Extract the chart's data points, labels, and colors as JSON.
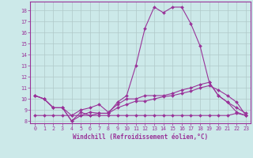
{
  "xlabel": "Windchill (Refroidissement éolien,°C)",
  "background_color": "#cce9e9",
  "grid_color": "#b0c8c8",
  "line_color": "#993399",
  "xlim": [
    -0.5,
    23.5
  ],
  "ylim": [
    7.8,
    18.8
  ],
  "yticks": [
    8,
    9,
    10,
    11,
    12,
    13,
    14,
    15,
    16,
    17,
    18
  ],
  "xticks": [
    0,
    1,
    2,
    3,
    4,
    5,
    6,
    7,
    8,
    9,
    10,
    11,
    12,
    13,
    14,
    15,
    16,
    17,
    18,
    19,
    20,
    21,
    22,
    23
  ],
  "series": [
    [
      10.3,
      10.0,
      9.2,
      9.2,
      8.0,
      8.8,
      8.5,
      8.7,
      8.7,
      9.7,
      10.3,
      13.0,
      16.4,
      18.3,
      17.8,
      18.3,
      18.3,
      16.8,
      14.8,
      11.5,
      10.3,
      9.7,
      8.8,
      8.5
    ],
    [
      10.3,
      10.0,
      9.2,
      9.2,
      8.5,
      9.0,
      9.2,
      9.5,
      8.8,
      9.5,
      10.0,
      10.0,
      10.3,
      10.3,
      10.3,
      10.5,
      10.8,
      11.0,
      11.3,
      11.5,
      10.3,
      9.7,
      9.2,
      8.7
    ],
    [
      10.3,
      10.0,
      9.2,
      9.2,
      8.0,
      8.5,
      8.8,
      8.7,
      8.7,
      9.2,
      9.5,
      9.8,
      9.8,
      10.0,
      10.2,
      10.3,
      10.5,
      10.7,
      11.0,
      11.2,
      10.8,
      10.3,
      9.7,
      8.5
    ],
    [
      8.5,
      8.5,
      8.5,
      8.5,
      8.5,
      8.5,
      8.5,
      8.5,
      8.5,
      8.5,
      8.5,
      8.5,
      8.5,
      8.5,
      8.5,
      8.5,
      8.5,
      8.5,
      8.5,
      8.5,
      8.5,
      8.5,
      8.7,
      8.5
    ]
  ],
  "marker": "D",
  "markersize": 2.0,
  "linewidth": 0.8,
  "xlabel_fontsize": 5.5,
  "tick_fontsize": 4.8
}
